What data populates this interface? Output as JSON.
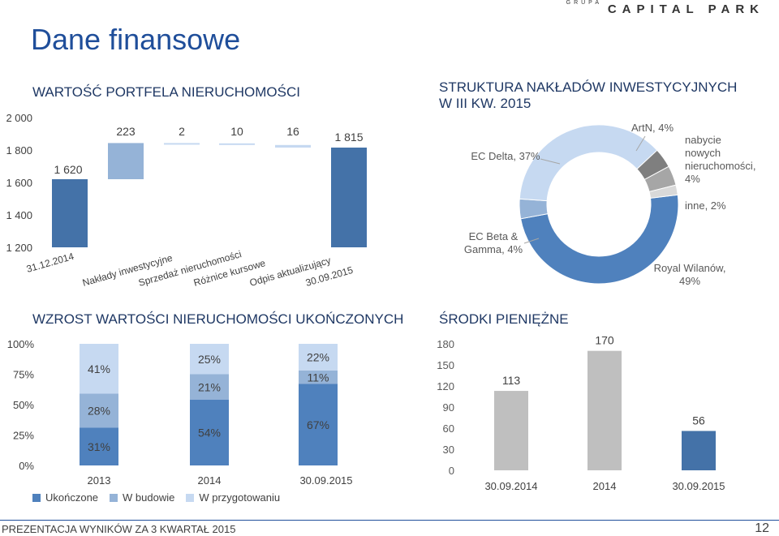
{
  "header": {
    "page_title": "Dane finansowe",
    "brand_small": "GRUPA",
    "brand_name": "CAPITAL PARK"
  },
  "footer": {
    "text": "PREZENTACJA WYNIKÓW ZA 3 KWARTAŁ 2015",
    "page_number": "12"
  },
  "colors": {
    "dark_blue": "#4472a8",
    "mid_blue": "#95b3d7",
    "light_blue": "#c6d9f1",
    "grey": "#bfbfbf",
    "title_blue": "#1f4e9a"
  },
  "chart_data": [
    {
      "id": "portfolio",
      "type": "waterfall",
      "title": "WARTOŚĆ PORTFELA NIERUCHOMOŚCI",
      "ylim": [
        1200,
        2000
      ],
      "yticks": [
        "1 200",
        "1 400",
        "1 600",
        "1 800",
        "2 000"
      ],
      "ytick_values": [
        1200,
        1400,
        1600,
        1800,
        2000
      ],
      "categories": [
        "31.12.2014",
        "Nakłady inwestycyjne",
        "Sprzedaż nieruchomości",
        "Różnice kursowe",
        "Odpis aktualizujący",
        "30.09.2015"
      ],
      "values": [
        1620,
        223,
        2,
        10,
        16,
        1815
      ],
      "labels": [
        "1 620",
        "223",
        "2",
        "10",
        "16",
        "1 815"
      ],
      "kinds": [
        "total",
        "increase",
        "decrease",
        "decrease",
        "decrease",
        "total"
      ]
    },
    {
      "id": "capex",
      "type": "pie",
      "title_line1": "STRUKTURA NAKŁADÓW INWESTYCYJNYCH",
      "title_line2": "W III KW. 2015",
      "slices": [
        {
          "label": "Royal Wilanów,",
          "label2": "49%",
          "value": 49,
          "color": "#4f81bd"
        },
        {
          "label": "EC Beta &",
          "label2": "Gamma, 4%",
          "value": 4,
          "color": "#95b3d7"
        },
        {
          "label": "EC Delta, 37%",
          "label2": "",
          "value": 37,
          "color": "#c6d9f1"
        },
        {
          "label": "ArtN, 4%",
          "label2": "",
          "value": 4,
          "color": "#7f7f7f"
        },
        {
          "label": "nabycie nowych nieruchomości, 4%",
          "label2": "",
          "value": 4,
          "color": "#a6a6a6"
        },
        {
          "label": "inne, 2%",
          "label2": "",
          "value": 2,
          "color": "#d9d9d9"
        }
      ],
      "label_lines": {
        "nabycie": [
          "nabycie",
          "nowych",
          "nieruchomości,",
          "4%"
        ]
      }
    },
    {
      "id": "growth",
      "type": "bar",
      "stacked": true,
      "title": "WZROST WARTOŚCI NIERUCHOMOŚCI UKOŃCZONYCH",
      "categories": [
        "2013",
        "2014",
        "30.09.2015"
      ],
      "yticks": [
        "0%",
        "25%",
        "50%",
        "75%",
        "100%"
      ],
      "series": [
        {
          "name": "Ukończone",
          "values": [
            31,
            54,
            67
          ],
          "labels": [
            "31%",
            "54%",
            "67%"
          ],
          "color": "#4f81bd"
        },
        {
          "name": "W budowie",
          "values": [
            28,
            21,
            11
          ],
          "labels": [
            "28%",
            "21%",
            "11%"
          ],
          "color": "#95b3d7"
        },
        {
          "name": "W przygotowaniu",
          "values": [
            41,
            25,
            22
          ],
          "labels": [
            "41%",
            "25%",
            "22%"
          ],
          "color": "#c6d9f1"
        }
      ]
    },
    {
      "id": "cash",
      "type": "bar",
      "title": "ŚRODKI PIENIĘŻNE",
      "categories": [
        "30.09.2014",
        "2014",
        "30.09.2015"
      ],
      "values": [
        113,
        170,
        56
      ],
      "labels": [
        "113",
        "170",
        "56"
      ],
      "colors": [
        "#bfbfbf",
        "#bfbfbf",
        "#4472a8"
      ],
      "ylim": [
        0,
        180
      ],
      "yticks": [
        "0",
        "30",
        "60",
        "90",
        "120",
        "150",
        "180"
      ],
      "ytick_values": [
        0,
        30,
        60,
        90,
        120,
        150,
        180
      ]
    }
  ]
}
